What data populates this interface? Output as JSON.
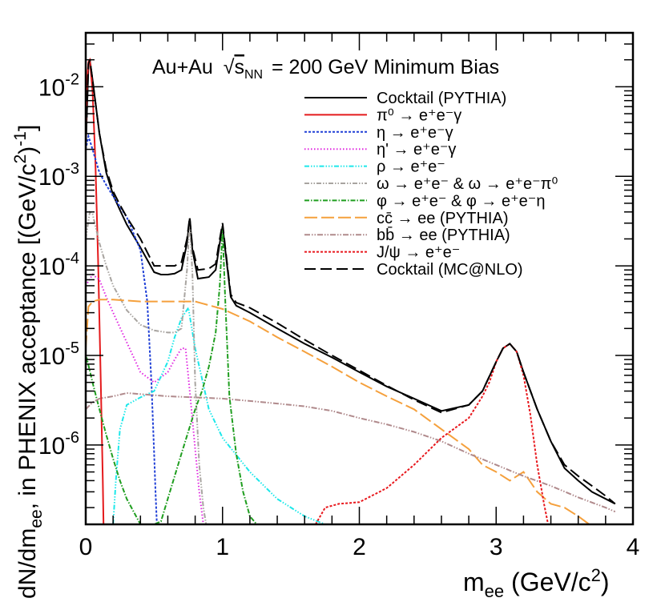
{
  "chart_data": {
    "type": "line",
    "title": "Au+Au √s_NN = 200 GeV Minimum Bias",
    "title_parts": {
      "prefix": "Au+Au",
      "sqrt": "s",
      "sub": "NN",
      "suffix": "= 200 GeV Minimum Bias"
    },
    "xlabel": "m_ee (GeV/c²)",
    "ylabel": "dN/dm_ee, in PHENIX acceptance [(GeV/c²)⁻¹]",
    "xlim": [
      0,
      4
    ],
    "ylim": [
      1.3e-07,
      0.04
    ],
    "yscale": "log",
    "x_ticks": [
      "0",
      "1",
      "2",
      "3",
      "4"
    ],
    "y_ticks": [
      {
        "value": 0.01,
        "mantissa": "10",
        "exp": "-2"
      },
      {
        "value": 0.001,
        "mantissa": "10",
        "exp": "-3"
      },
      {
        "value": 0.0001,
        "mantissa": "10",
        "exp": "-4"
      },
      {
        "value": 1e-05,
        "mantissa": "10",
        "exp": "-5"
      },
      {
        "value": 1e-06,
        "mantissa": "10",
        "exp": "-6"
      }
    ],
    "legend_position": "top-right",
    "series": [
      {
        "name": "Cocktail (PYTHIA)",
        "color": "#000000",
        "dash": "solid",
        "x": [
          0.0,
          0.02,
          0.03,
          0.05,
          0.1,
          0.15,
          0.2,
          0.25,
          0.3,
          0.4,
          0.5,
          0.55,
          0.6,
          0.65,
          0.7,
          0.74,
          0.76,
          0.78,
          0.82,
          0.9,
          0.95,
          0.98,
          1.0,
          1.02,
          1.06,
          1.1,
          1.2,
          1.4,
          1.6,
          1.8,
          2.0,
          2.2,
          2.4,
          2.6,
          2.8,
          2.9,
          3.0,
          3.05,
          3.1,
          3.15,
          3.2,
          3.3,
          3.4,
          3.5,
          3.6,
          3.7,
          3.8,
          3.87
        ],
        "y": [
          0.002,
          0.018,
          0.02,
          0.012,
          0.003,
          0.0011,
          0.00062,
          0.00042,
          0.00029,
          0.00016,
          8.5e-05,
          8e-05,
          8e-05,
          8.2e-05,
          9e-05,
          0.00018,
          0.00034,
          0.00015,
          7.2e-05,
          7.5e-05,
          9e-05,
          0.00018,
          0.00028,
          0.00015,
          4.5e-05,
          3.6e-05,
          3e-05,
          2e-05,
          1.35e-05,
          9.5e-06,
          6.5e-06,
          4.5e-06,
          3.3e-06,
          2.4e-06,
          2.8e-06,
          4e-06,
          8.5e-06,
          1.2e-05,
          1.35e-05,
          1.1e-05,
          6.5e-06,
          2.5e-06,
          1.1e-06,
          5.5e-07,
          4e-07,
          3e-07,
          2.5e-07,
          2.2e-07
        ]
      },
      {
        "name": "π⁰ → e⁺e⁻γ",
        "color": "#e41a1c",
        "dash": "solid",
        "x": [
          0.0,
          0.01,
          0.02,
          0.03,
          0.05,
          0.07,
          0.09,
          0.11,
          0.125,
          0.13
        ],
        "y": [
          0.0025,
          0.012,
          0.019,
          0.02,
          0.009,
          0.0015,
          0.00012,
          5e-06,
          4e-07,
          1.3e-07
        ]
      },
      {
        "name": "η → e⁺e⁻γ",
        "color": "#1f3fd6",
        "dash": "3,2",
        "x": [
          0.0,
          0.02,
          0.05,
          0.1,
          0.15,
          0.2,
          0.3,
          0.4,
          0.45,
          0.48,
          0.5,
          0.51,
          0.52
        ],
        "y": [
          0.002,
          0.0028,
          0.002,
          0.0011,
          0.0008,
          0.0006,
          0.00035,
          0.00015,
          4e-05,
          5e-06,
          8e-07,
          3e-07,
          1.3e-07
        ]
      },
      {
        "name": "η' → e⁺e⁻γ",
        "color": "#e026e0",
        "dash": "1.5,2.5",
        "x": [
          0.0,
          0.05,
          0.1,
          0.15,
          0.2,
          0.3,
          0.4,
          0.5,
          0.6,
          0.65,
          0.7,
          0.73,
          0.76,
          0.8,
          0.83,
          0.86,
          0.9
        ],
        "y": [
          6e-05,
          8e-05,
          7e-05,
          4.5e-05,
          3e-05,
          1.4e-05,
          6.5e-06,
          5e-06,
          6.5e-06,
          9e-06,
          1.2e-05,
          1.2e-05,
          4e-06,
          9e-07,
          3e-07,
          1.3e-07,
          1.3e-07
        ]
      },
      {
        "name": "ρ → e⁺e⁻",
        "color": "#1ce8ea",
        "dash": "6,2,1.5,2,1.5,2,1.5,2",
        "x": [
          0.2,
          0.22,
          0.25,
          0.3,
          0.4,
          0.5,
          0.6,
          0.65,
          0.7,
          0.75,
          0.8,
          0.9,
          1.0,
          1.2,
          1.4,
          1.6,
          1.75
        ],
        "y": [
          1.3e-07,
          4e-07,
          1.5e-06,
          2.8e-06,
          3.4e-06,
          4e-06,
          8.5e-06,
          1.6e-05,
          2.6e-05,
          3.4e-05,
          1.2e-05,
          2.5e-06,
          1.2e-06,
          5e-07,
          2.5e-07,
          1.6e-07,
          1.3e-07
        ]
      },
      {
        "name": "ω → e⁺e⁻ & ω → e⁺e⁻π⁰",
        "color": "#a8a4a0",
        "dash": "6,2,1.5,2,1.5,2",
        "x": [
          0.0,
          0.03,
          0.05,
          0.1,
          0.15,
          0.2,
          0.3,
          0.4,
          0.5,
          0.6,
          0.65,
          0.7,
          0.74,
          0.76,
          0.78,
          0.8,
          0.83,
          0.86,
          0.88
        ],
        "y": [
          0.0002,
          0.0004,
          0.00038,
          0.00018,
          0.0001,
          6e-05,
          3.2e-05,
          2.2e-05,
          1.9e-05,
          1.8e-05,
          1.8e-05,
          2e-05,
          9e-05,
          0.00033,
          8e-05,
          5e-06,
          6e-07,
          2e-07,
          1.3e-07
        ]
      },
      {
        "name": "φ → e⁺e⁻ & φ → e⁺e⁻η",
        "color": "#1f9e1f",
        "dash": "6,2,1.5,2",
        "x": [
          0.0,
          0.01,
          0.05,
          0.1,
          0.15,
          0.2,
          0.25,
          0.3,
          0.35,
          0.4,
          0.45,
          0.5,
          0.55,
          0.6,
          0.7,
          0.8,
          0.85,
          0.9,
          0.95,
          0.98,
          1.0,
          1.02,
          1.05,
          1.1,
          1.15,
          1.2,
          1.25
        ],
        "y": [
          8e-06,
          9e-06,
          5e-06,
          2.5e-06,
          1.3e-06,
          7e-07,
          4e-07,
          2.5e-07,
          1.8e-07,
          1.3e-07,
          1.3e-07,
          1.3e-07,
          1.4e-07,
          2.5e-07,
          8e-07,
          2.5e-06,
          4e-06,
          7.5e-06,
          1.8e-05,
          6e-05,
          0.00026,
          4e-05,
          3.5e-06,
          8e-07,
          3e-07,
          1.6e-07,
          1.3e-07
        ]
      },
      {
        "name": "cc̄ → ee (PYTHIA)",
        "color": "#f5a03c",
        "dash": "16,5",
        "x": [
          0.0,
          0.02,
          0.05,
          0.1,
          0.2,
          0.4,
          0.6,
          0.8,
          1.0,
          1.2,
          1.4,
          1.6,
          1.8,
          2.0,
          2.2,
          2.4,
          2.6,
          2.8,
          2.9,
          3.0,
          3.1,
          3.2,
          3.3,
          3.4,
          3.5,
          3.6,
          3.68
        ],
        "y": [
          1.2e-05,
          3.5e-05,
          4e-05,
          4.2e-05,
          4.2e-05,
          4e-05,
          4e-05,
          4e-05,
          3.3e-05,
          2.4e-05,
          1.6e-05,
          1.1e-05,
          7.5e-06,
          5e-06,
          3.5e-06,
          2.5e-06,
          1.5e-06,
          9e-07,
          6e-07,
          5e-07,
          4e-07,
          5e-07,
          3e-07,
          2.2e-07,
          2e-07,
          1.6e-07,
          1.3e-07
        ]
      },
      {
        "name": "bb̄ → ee (PYTHIA)",
        "color": "#b08a8c",
        "dash": "7,2,1.5,2,1.5,2",
        "x": [
          0.0,
          0.05,
          0.1,
          0.2,
          0.3,
          0.4,
          0.6,
          0.8,
          1.0,
          1.2,
          1.4,
          1.6,
          1.8,
          2.0,
          2.2,
          2.4,
          2.6,
          2.8,
          3.0,
          3.2,
          3.4,
          3.6,
          3.8,
          3.87
        ],
        "y": [
          2.5e-06,
          3e-06,
          3.3e-06,
          3.5e-06,
          3.8e-06,
          3.7e-06,
          3.5e-06,
          3.4e-06,
          3.3e-06,
          3.1e-06,
          2.9e-06,
          2.7e-06,
          2.4e-06,
          2e-06,
          1.7e-06,
          1.4e-06,
          1.1e-06,
          8e-07,
          6e-07,
          4.5e-07,
          3.5e-07,
          2.6e-07,
          2e-07,
          1.8e-07
        ]
      },
      {
        "name": "J/ψ → e⁺e⁻",
        "color": "#e8171c",
        "dash": "3,2",
        "x": [
          1.68,
          1.75,
          1.85,
          2.0,
          2.2,
          2.4,
          2.6,
          2.8,
          2.9,
          2.95,
          3.0,
          3.05,
          3.1,
          3.15,
          3.2,
          3.25,
          3.3,
          3.35,
          3.38
        ],
        "y": [
          1.3e-07,
          2e-07,
          2.2e-07,
          2.3e-07,
          3.3e-07,
          6e-07,
          1.2e-06,
          2e-06,
          3.5e-06,
          5e-06,
          8.5e-06,
          1.2e-05,
          1.35e-05,
          1.1e-05,
          6e-06,
          2.2e-06,
          6e-07,
          2.2e-07,
          1.3e-07
        ]
      },
      {
        "name": "Cocktail (MC@NLO)",
        "color": "#000000",
        "dash": "14,6",
        "x": [
          0.0,
          0.02,
          0.03,
          0.05,
          0.1,
          0.15,
          0.2,
          0.25,
          0.3,
          0.4,
          0.5,
          0.55,
          0.6,
          0.65,
          0.7,
          0.74,
          0.76,
          0.78,
          0.82,
          0.9,
          0.95,
          0.98,
          1.0,
          1.02,
          1.06,
          1.1,
          1.2,
          1.4,
          1.6,
          1.8,
          2.0,
          2.2,
          2.4,
          2.6,
          2.8,
          2.9,
          3.0,
          3.05,
          3.1,
          3.15,
          3.2,
          3.3,
          3.4,
          3.5,
          3.6,
          3.7,
          3.8,
          3.87
        ],
        "y": [
          0.002,
          0.018,
          0.02,
          0.012,
          0.003,
          0.0012,
          0.00068,
          0.00048,
          0.00035,
          0.0002,
          0.0001,
          0.0001,
          0.0001,
          0.0001,
          0.00011,
          0.0002,
          0.00035,
          0.00016,
          9e-05,
          9.3e-05,
          0.000105,
          0.0002,
          0.0003,
          0.00016,
          4.8e-05,
          3.9e-05,
          3.4e-05,
          2.3e-05,
          1.5e-05,
          1e-05,
          6.8e-06,
          4.6e-06,
          3.2e-06,
          2.3e-06,
          2.8e-06,
          4e-06,
          8.5e-06,
          1.2e-05,
          1.35e-05,
          1.1e-05,
          6.5e-06,
          2.5e-06,
          1.1e-06,
          6e-07,
          4.5e-07,
          3.5e-07,
          2.7e-07,
          2.2e-07
        ]
      }
    ]
  }
}
